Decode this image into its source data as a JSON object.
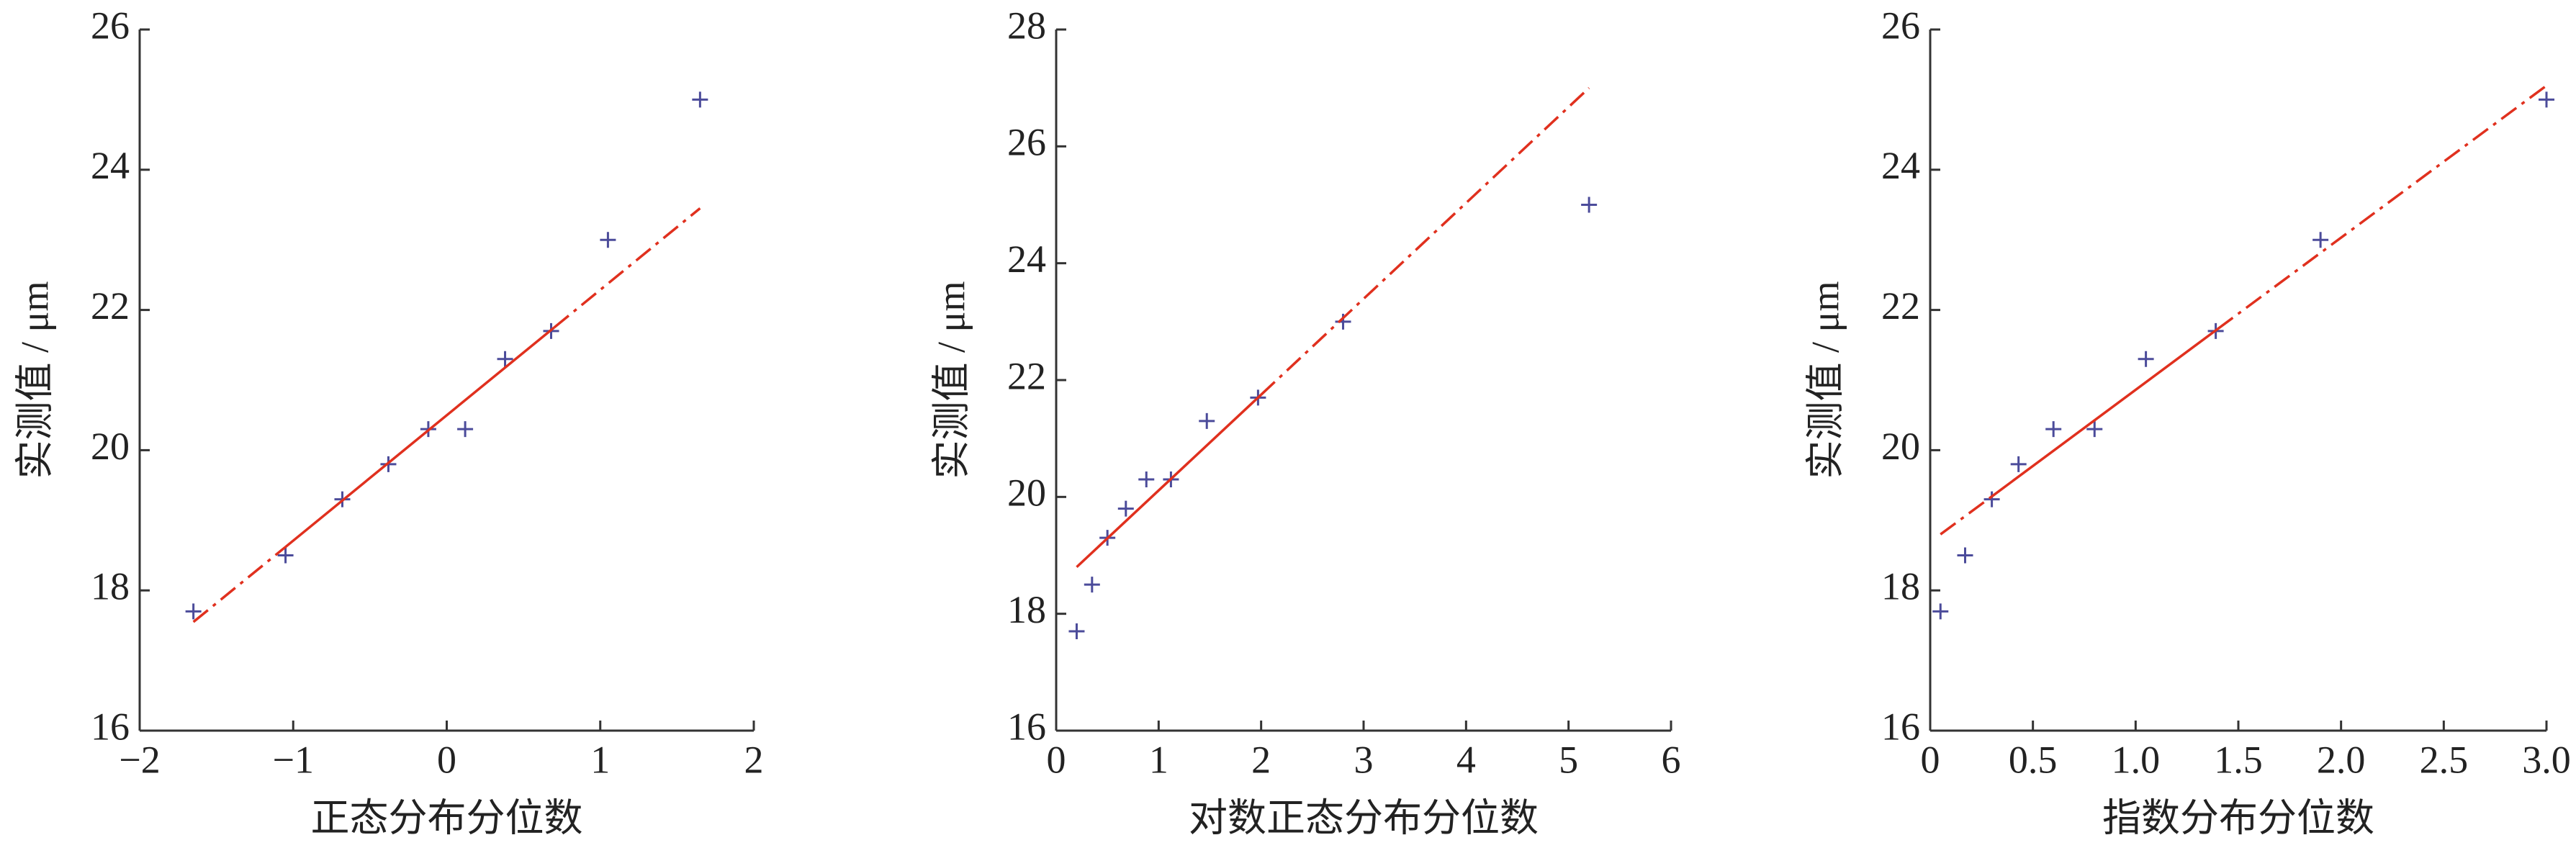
{
  "chart_data": [
    {
      "type": "scatter",
      "xlabel": "正态分布分位数",
      "ylabel": "实测值 / μm",
      "x": [
        -1.65,
        -1.05,
        -0.68,
        -0.38,
        -0.12,
        0.12,
        0.38,
        0.68,
        1.05,
        1.65
      ],
      "values": [
        17.7,
        18.5,
        19.3,
        19.8,
        20.3,
        20.3,
        21.3,
        21.7,
        23.0,
        25.0
      ],
      "color": "#4b4b9a",
      "fit": {
        "x": [
          -1.65,
          -1.05,
          0.7,
          1.65
        ],
        "y": [
          17.55,
          18.62,
          21.75,
          23.45
        ],
        "color": "#e0301e"
      },
      "xlim": [
        -2,
        2
      ],
      "xticks": [
        {
          "value": -2,
          "label": "−2"
        },
        {
          "value": -1,
          "label": "−1"
        },
        0,
        1,
        2
      ],
      "ylim": [
        16,
        26
      ],
      "yticks": [
        16,
        18,
        20,
        22,
        24,
        26
      ]
    },
    {
      "type": "scatter",
      "xlabel": "对数正态分布分位数",
      "ylabel": "实测值 / μm",
      "x": [
        0.2,
        0.35,
        0.5,
        0.68,
        0.88,
        1.12,
        1.47,
        1.97,
        2.8,
        5.2
      ],
      "values": [
        17.7,
        18.5,
        19.3,
        19.8,
        20.3,
        20.3,
        21.3,
        21.7,
        23.0,
        25.0
      ],
      "color": "#4b4b9a",
      "fit": {
        "x": [
          0.2,
          0.2,
          2.0,
          5.2
        ],
        "y": [
          18.8,
          18.8,
          21.75,
          27.0
        ],
        "color": "#e0301e"
      },
      "xlim": [
        0,
        6
      ],
      "xticks": [
        0,
        1,
        2,
        3,
        4,
        5,
        6
      ],
      "ylim": [
        16,
        28
      ],
      "yticks": [
        16,
        18,
        20,
        22,
        24,
        26,
        28
      ]
    },
    {
      "type": "scatter",
      "xlabel": "指数分布分位数",
      "ylabel": "实测值 / μm",
      "x": [
        0.05,
        0.17,
        0.3,
        0.43,
        0.6,
        0.8,
        1.05,
        1.39,
        1.9,
        3.0
      ],
      "values": [
        17.7,
        18.5,
        19.3,
        19.8,
        20.3,
        20.3,
        21.3,
        21.7,
        23.0,
        25.0
      ],
      "color": "#4b4b9a",
      "fit": {
        "x": [
          0.05,
          0.3,
          1.4,
          3.0
        ],
        "y": [
          18.8,
          19.34,
          21.73,
          25.2
        ],
        "color": "#e0301e"
      },
      "xlim": [
        0,
        3
      ],
      "xticks": [
        0,
        0.5,
        {
          "value": 1,
          "label": "1.0"
        },
        1.5,
        {
          "value": 2,
          "label": "2.0"
        },
        2.5,
        {
          "value": 3,
          "label": "3.0"
        }
      ],
      "ylim": [
        16,
        26
      ],
      "yticks": [
        16,
        18,
        20,
        22,
        24,
        26
      ]
    }
  ]
}
